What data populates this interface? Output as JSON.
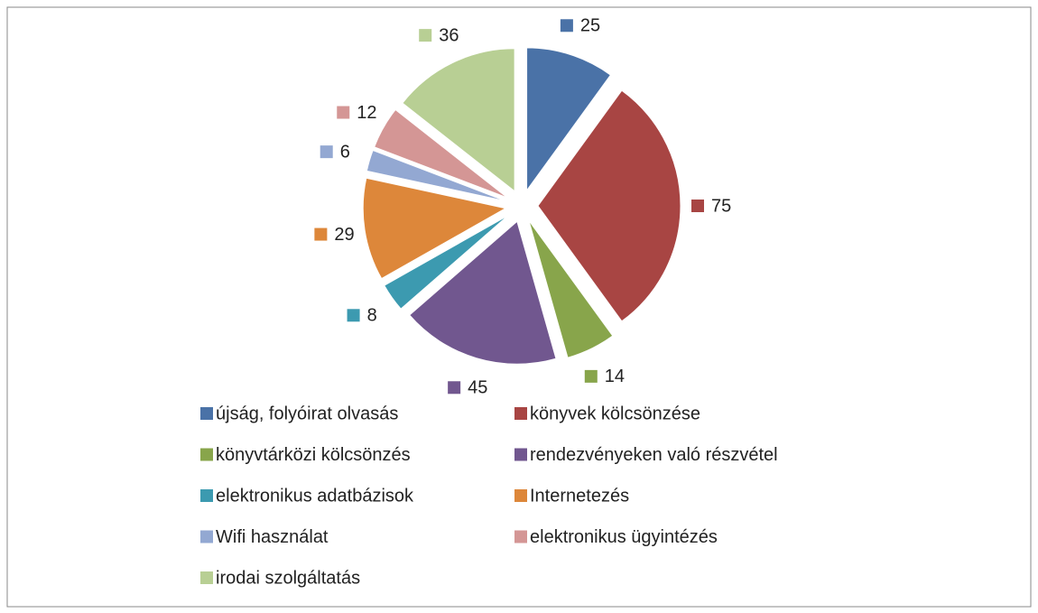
{
  "chart_data": {
    "type": "pie",
    "categories": [
      "újság, folyóirat olvasás",
      "könyvek kölcsönzése",
      "könyvtárközi kölcsönzés",
      "rendezvényeken való részvétel",
      "elektronikus adatbázisok",
      "Internetezés",
      "Wifi használat",
      "elektronikus ügyintézés",
      "irodai szolgáltatás"
    ],
    "values": [
      25,
      75,
      14,
      45,
      8,
      29,
      6,
      12,
      36
    ],
    "colors": [
      "#4a72a7",
      "#a84543",
      "#88a54b",
      "#71578f",
      "#3c9ab0",
      "#dd873a",
      "#93a8d2",
      "#d49695",
      "#b8cf94"
    ],
    "exploded": true,
    "legend": "bottom"
  }
}
